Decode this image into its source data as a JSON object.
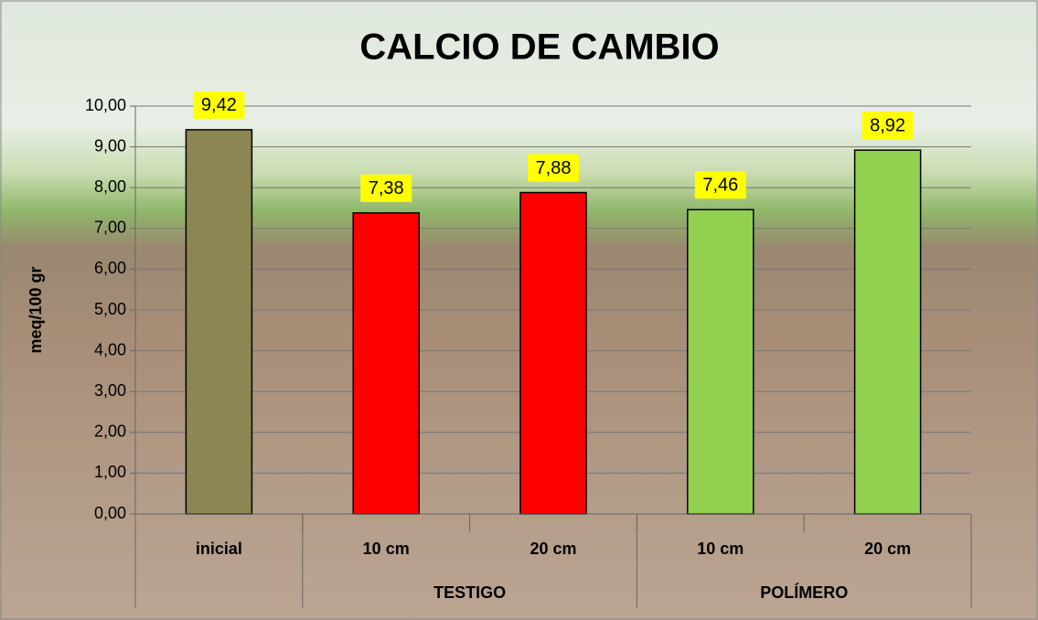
{
  "chart_data": {
    "type": "bar",
    "title": "CALCIO DE CAMBIO",
    "y_label": "meq/100 gr",
    "categories": [
      "inicial",
      "10 cm",
      "20 cm",
      "10 cm",
      "20 cm"
    ],
    "groups": [
      {
        "label": null,
        "count": 1
      },
      {
        "label": "TESTIGO",
        "count": 2
      },
      {
        "label": "POLÍMERO",
        "count": 2
      }
    ],
    "values": [
      9.42,
      7.38,
      7.88,
      7.46,
      8.92
    ],
    "value_labels": [
      "9,42",
      "7,38",
      "7,88",
      "7,46",
      "8,92"
    ],
    "colors": [
      "#8c8652",
      "#ff0000",
      "#ff0000",
      "#92d050",
      "#92d050"
    ],
    "ylim": [
      0,
      10
    ],
    "yticks": [
      {
        "value": 0,
        "label": "0,00"
      },
      {
        "value": 1,
        "label": "1,00"
      },
      {
        "value": 2,
        "label": "2,00"
      },
      {
        "value": 3,
        "label": "3,00"
      },
      {
        "value": 4,
        "label": "4,00"
      },
      {
        "value": 5,
        "label": "5,00"
      },
      {
        "value": 6,
        "label": "6,00"
      },
      {
        "value": 7,
        "label": "7,00"
      },
      {
        "value": 8,
        "label": "8,00"
      },
      {
        "value": 9,
        "label": "9,00"
      },
      {
        "value": 10,
        "label": "10,00"
      }
    ],
    "grid": true
  }
}
